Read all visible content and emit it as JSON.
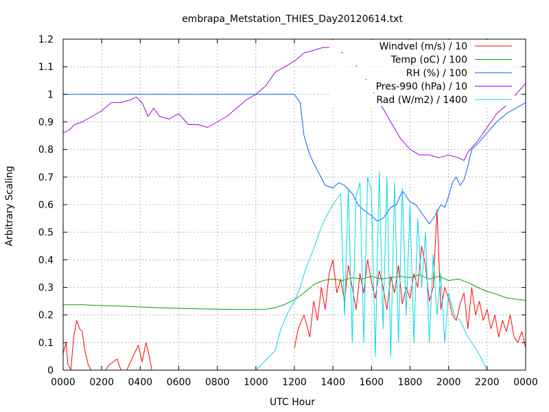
{
  "chart_data": {
    "type": "line",
    "title": "embrapa_Metstation_THIES_Day20120614.txt",
    "xlabel": "UTC Hour",
    "ylabel": "Arbitrary Scaling",
    "xlim": [
      0,
      24
    ],
    "ylim": [
      0,
      1.2
    ],
    "grid": true,
    "legend_position": "top-right",
    "x_tick_labels": [
      "0000",
      "0200",
      "0400",
      "0600",
      "0800",
      "1000",
      "1200",
      "1400",
      "1600",
      "1800",
      "2000",
      "2200",
      "0000"
    ],
    "y_tick_labels": [
      "0",
      "0.1",
      "0.2",
      "0.3",
      "0.4",
      "0.5",
      "0.6",
      "0.7",
      "0.8",
      "0.9",
      "1",
      "1.1",
      "1.2"
    ],
    "series": [
      {
        "name": "Windvel (m/s) / 10",
        "color": "#ff0000",
        "x": [
          0.0,
          0.15,
          0.25,
          0.4,
          0.55,
          0.7,
          0.85,
          1.0,
          1.1,
          1.3,
          1.45,
          1.6,
          1.8,
          1.95,
          2.2,
          2.4,
          2.8,
          3.0,
          3.3,
          3.7,
          3.9,
          4.1,
          4.3,
          4.5,
          4.6,
          4.75,
          4.9,
          5.1,
          9.0,
          10.5,
          11.5,
          12.0,
          12.2,
          12.5,
          12.8,
          13.0,
          13.2,
          13.4,
          13.6,
          13.8,
          14.0,
          14.2,
          14.4,
          14.6,
          14.8,
          15.0,
          15.2,
          15.4,
          15.6,
          15.8,
          16.0,
          16.2,
          16.4,
          16.6,
          16.8,
          17.0,
          17.2,
          17.4,
          17.6,
          17.8,
          18.0,
          18.2,
          18.4,
          18.6,
          18.8,
          19.0,
          19.2,
          19.4,
          19.6,
          19.8,
          20.0,
          20.2,
          20.4,
          20.6,
          20.8,
          21.0,
          21.2,
          21.4,
          21.6,
          21.8,
          22.0,
          22.2,
          22.4,
          22.6,
          22.8,
          23.0,
          23.2,
          23.4,
          23.6,
          23.8,
          24.0
        ],
        "y": [
          0.06,
          0.1,
          0.02,
          0.0,
          0.12,
          0.18,
          0.15,
          0.14,
          0.08,
          0.02,
          0.0,
          0.0,
          0.0,
          0.0,
          0.0,
          0.02,
          0.04,
          0.0,
          0.0,
          0.06,
          0.09,
          0.03,
          0.1,
          0.04,
          0.0,
          0.0,
          0.0,
          0.0,
          null,
          null,
          null,
          0.08,
          0.15,
          0.2,
          0.12,
          0.25,
          0.18,
          0.3,
          0.22,
          0.35,
          0.4,
          0.28,
          0.33,
          0.25,
          0.38,
          0.3,
          0.22,
          0.35,
          0.28,
          0.4,
          0.32,
          0.26,
          0.36,
          0.3,
          0.22,
          0.34,
          0.28,
          0.38,
          0.24,
          0.3,
          0.26,
          0.35,
          0.3,
          0.45,
          0.38,
          0.25,
          0.3,
          0.58,
          0.22,
          0.3,
          0.26,
          0.2,
          0.18,
          0.24,
          0.28,
          0.15,
          0.3,
          0.2,
          0.25,
          0.18,
          0.22,
          0.15,
          0.2,
          0.12,
          0.18,
          0.14,
          0.2,
          0.12,
          0.1,
          0.14,
          0.08
        ]
      },
      {
        "name": "Temp (oC) / 100",
        "color": "#00a000",
        "x": [
          0.0,
          1.0,
          2.0,
          3.0,
          4.0,
          5.0,
          6.0,
          7.0,
          8.0,
          9.0,
          10.0,
          10.5,
          11.0,
          11.5,
          12.0,
          12.5,
          13.0,
          13.5,
          14.0,
          14.5,
          15.0,
          15.5,
          16.0,
          16.5,
          17.0,
          17.5,
          18.0,
          18.5,
          19.0,
          19.5,
          20.0,
          20.5,
          21.0,
          21.5,
          22.0,
          22.5,
          23.0,
          23.5,
          24.0
        ],
        "y": [
          0.237,
          0.237,
          0.234,
          0.232,
          0.229,
          0.226,
          0.224,
          0.222,
          0.221,
          0.22,
          0.22,
          0.221,
          0.226,
          0.238,
          0.255,
          0.28,
          0.31,
          0.325,
          0.33,
          0.325,
          0.335,
          0.33,
          0.34,
          0.33,
          0.335,
          0.34,
          0.335,
          0.345,
          0.33,
          0.34,
          0.325,
          0.33,
          0.318,
          0.3,
          0.285,
          0.275,
          0.262,
          0.257,
          0.253
        ]
      },
      {
        "name": "RH (%) / 100",
        "color": "#0060ff",
        "x": [
          0.0,
          12.0,
          12.3,
          12.5,
          12.8,
          13.0,
          13.3,
          13.6,
          14.0,
          14.3,
          14.6,
          15.0,
          15.3,
          15.6,
          16.0,
          16.3,
          16.6,
          17.0,
          17.3,
          17.6,
          18.0,
          18.3,
          18.6,
          19.0,
          19.3,
          19.6,
          19.8,
          20.0,
          20.2,
          20.4,
          20.6,
          20.8,
          21.0,
          21.2,
          21.5,
          22.0,
          22.5,
          23.0,
          23.5,
          24.0
        ],
        "y": [
          1.0,
          1.0,
          0.97,
          0.85,
          0.78,
          0.75,
          0.71,
          0.67,
          0.66,
          0.68,
          0.67,
          0.64,
          0.6,
          0.58,
          0.56,
          0.54,
          0.55,
          0.59,
          0.6,
          0.65,
          0.61,
          0.6,
          0.57,
          0.53,
          0.56,
          0.6,
          0.59,
          0.63,
          0.68,
          0.7,
          0.67,
          0.69,
          0.74,
          0.8,
          0.82,
          0.86,
          0.9,
          0.93,
          0.95,
          0.97
        ]
      },
      {
        "name": "Pres-990 (hPa) / 10",
        "color": "#a000e0",
        "x": [
          0.0,
          0.3,
          0.6,
          1.0,
          1.5,
          2.0,
          2.5,
          3.0,
          3.5,
          3.8,
          4.1,
          4.4,
          4.7,
          5.0,
          5.5,
          6.0,
          6.5,
          7.0,
          7.5,
          8.0,
          8.5,
          9.0,
          9.5,
          10.0,
          10.5,
          11.0,
          11.5,
          12.0,
          12.5,
          13.0,
          13.5,
          14.0,
          14.5,
          15.0,
          15.5,
          16.0,
          16.5,
          17.0,
          17.5,
          18.0,
          18.5,
          19.0,
          19.5,
          20.0,
          20.5,
          20.8,
          21.0,
          21.5,
          22.0,
          22.5,
          23.0,
          23.5,
          24.0
        ],
        "y": [
          0.86,
          0.87,
          0.89,
          0.9,
          0.92,
          0.94,
          0.97,
          0.97,
          0.98,
          0.99,
          0.97,
          0.92,
          0.95,
          0.92,
          0.91,
          0.93,
          0.89,
          0.89,
          0.88,
          0.9,
          0.92,
          0.95,
          0.98,
          1.0,
          1.03,
          1.08,
          1.1,
          1.12,
          1.15,
          1.16,
          1.17,
          1.17,
          1.15,
          1.12,
          1.08,
          1.02,
          0.96,
          0.9,
          0.84,
          0.8,
          0.78,
          0.78,
          0.77,
          0.78,
          0.77,
          0.76,
          0.79,
          0.83,
          0.88,
          0.93,
          0.96,
          1.0,
          1.04
        ]
      },
      {
        "name": "Rad (W/m2) / 1400",
        "color": "#00d8e8",
        "x": [
          10.0,
          10.3,
          10.7,
          11.0,
          11.3,
          11.6,
          12.0,
          12.3,
          12.6,
          13.0,
          13.3,
          13.6,
          14.0,
          14.2,
          14.4,
          14.6,
          14.8,
          15.0,
          15.2,
          15.4,
          15.6,
          15.8,
          16.0,
          16.2,
          16.4,
          16.6,
          16.8,
          17.0,
          17.2,
          17.4,
          17.6,
          17.8,
          18.0,
          18.2,
          18.4,
          18.6,
          18.8,
          19.0,
          19.2,
          19.4,
          19.6,
          19.8,
          20.0,
          20.3,
          20.6,
          21.0,
          21.4,
          21.8,
          22.0
        ],
        "y": [
          0.0,
          0.02,
          0.05,
          0.07,
          0.15,
          0.2,
          0.25,
          0.3,
          0.37,
          0.44,
          0.5,
          0.55,
          0.6,
          0.62,
          0.64,
          0.2,
          0.66,
          0.1,
          0.63,
          0.68,
          0.1,
          0.7,
          0.65,
          0.05,
          0.72,
          0.15,
          0.7,
          0.05,
          0.68,
          0.1,
          0.66,
          0.2,
          0.6,
          0.1,
          0.55,
          0.3,
          0.5,
          0.1,
          0.42,
          0.2,
          0.35,
          0.1,
          0.28,
          0.2,
          0.18,
          0.12,
          0.08,
          0.03,
          0.0
        ]
      }
    ]
  }
}
